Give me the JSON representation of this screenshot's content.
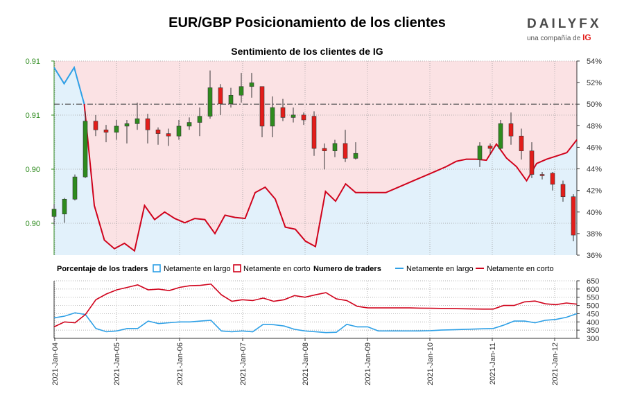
{
  "title": "EUR/GBP Posicionamiento de los clientes",
  "subtitle": "Sentimiento de los clientes de IG",
  "logo": {
    "brand": "DAILYFX",
    "tagline": "una compañía de",
    "ig": "IG"
  },
  "colors": {
    "long": "#2ea0e6",
    "short": "#d0021b",
    "long_fill": "#e2f1fb",
    "short_fill": "#fbe2e4",
    "candle_up": "#2e8b1e",
    "candle_down": "#e31d1a",
    "left_axis": "#2e8b1e"
  },
  "chart_data": [
    {
      "type": "candlestick+line",
      "name": "price_sentiment",
      "left_ticks": [
        "0.91",
        "0.91",
        "0.90",
        "0.90"
      ],
      "right_ticks": [
        "54%",
        "52%",
        "50%",
        "48%",
        "46%",
        "44%",
        "42%",
        "40%",
        "38%",
        "36%"
      ],
      "right_ylim": [
        36,
        54
      ],
      "reference_line": 50,
      "x_ticks": [
        "2021-Jan-04",
        "2021-Jan-05",
        "2021-Jan-06",
        "2021-Jan-07",
        "2021-Jan-08",
        "2021-Jan-09",
        "2021-Jan-10",
        "2021-Jan-11",
        "2021-Jan-12"
      ],
      "long_pct": [
        53.4,
        51.9,
        53.4,
        50.0,
        40.6,
        37.4,
        36.6,
        37.1,
        36.4,
        40.6,
        39.3,
        40.0,
        39.4,
        39.0,
        39.4,
        39.3,
        38.0,
        39.7,
        39.5,
        39.4,
        41.8,
        42.3,
        41.2,
        38.6,
        38.4,
        37.3,
        36.8,
        41.9,
        41.0,
        42.6,
        41.8,
        41.8,
        41.8,
        41.8,
        42.2,
        42.6,
        43.0,
        43.4,
        43.8,
        44.2,
        44.7,
        44.9,
        44.9,
        44.8,
        46.3,
        45.0,
        44.2,
        42.9,
        44.5,
        44.9,
        45.2,
        45.5,
        46.7
      ],
      "candles": [
        [
          0.899,
          0.8996,
          0.8983,
          0.9
        ],
        [
          0.8992,
          0.9004,
          0.8985,
          0.9005
        ],
        [
          0.9004,
          0.9022,
          0.9003,
          0.9024
        ],
        [
          0.9022,
          0.9067,
          0.9021,
          0.9075
        ],
        [
          0.9067,
          0.906,
          0.9055,
          0.9072
        ],
        [
          0.906,
          0.9058,
          0.905,
          0.9064
        ],
        [
          0.9058,
          0.9063,
          0.9052,
          0.9068
        ],
        [
          0.9063,
          0.9065,
          0.9049,
          0.9068
        ],
        [
          0.9065,
          0.9069,
          0.906,
          0.9082
        ],
        [
          0.9069,
          0.906,
          0.9049,
          0.9073
        ],
        [
          0.906,
          0.9057,
          0.9048,
          0.9062
        ],
        [
          0.9057,
          0.9055,
          0.9047,
          0.9061
        ],
        [
          0.9055,
          0.9063,
          0.9052,
          0.9068
        ],
        [
          0.9063,
          0.9066,
          0.906,
          0.907
        ],
        [
          0.9066,
          0.9071,
          0.9055,
          0.9078
        ],
        [
          0.9071,
          0.9094,
          0.9069,
          0.9108
        ],
        [
          0.9094,
          0.9081,
          0.9072,
          0.9097
        ],
        [
          0.9081,
          0.9088,
          0.9078,
          0.9094
        ],
        [
          0.9088,
          0.9095,
          0.9082,
          0.9106
        ],
        [
          0.9095,
          0.9098,
          0.9086,
          0.9106
        ],
        [
          0.9095,
          0.9063,
          0.9054,
          0.9095
        ],
        [
          0.9063,
          0.9078,
          0.9054,
          0.9087
        ],
        [
          0.9078,
          0.907,
          0.9067,
          0.9085
        ],
        [
          0.907,
          0.9072,
          0.9066,
          0.9078
        ],
        [
          0.9072,
          0.9068,
          0.9064,
          0.9074
        ],
        [
          0.9071,
          0.9045,
          0.9039,
          0.9075
        ],
        [
          0.9045,
          0.9043,
          0.9028,
          0.9049
        ],
        [
          0.9043,
          0.9049,
          0.9038,
          0.9052
        ],
        [
          0.9049,
          0.9037,
          0.9034,
          0.906
        ],
        [
          0.9037,
          0.9041,
          0.9036,
          0.905
        ],
        [
          0.9036,
          0.9047,
          0.903,
          0.905
        ],
        [
          0.9047,
          0.9045,
          0.904,
          0.9049
        ],
        [
          0.9045,
          0.9065,
          0.9044,
          0.9068
        ],
        [
          0.9065,
          0.9055,
          0.9048,
          0.9074
        ],
        [
          0.9055,
          0.9043,
          0.9036,
          0.9061
        ],
        [
          0.9043,
          0.9024,
          0.9021,
          0.905
        ],
        [
          0.9024,
          0.9023,
          0.902,
          0.9026
        ],
        [
          0.9025,
          0.9016,
          0.9011,
          0.9026
        ],
        [
          0.9016,
          0.9006,
          0.9002,
          0.9019
        ],
        [
          0.9006,
          0.8975,
          0.897,
          0.9008
        ]
      ]
    },
    {
      "type": "line",
      "name": "trader_counts",
      "right_ticks": [
        650,
        600,
        550,
        500,
        450,
        400,
        350,
        300
      ],
      "ylim": [
        300,
        650
      ],
      "series": [
        {
          "name": "Netamente en largo",
          "values": [
            425,
            435,
            455,
            445,
            360,
            340,
            345,
            360,
            360,
            405,
            390,
            395,
            400,
            400,
            405,
            410,
            345,
            340,
            345,
            340,
            385,
            383,
            375,
            355,
            345,
            340,
            335,
            337,
            385,
            370,
            370,
            345,
            345,
            345,
            345,
            345,
            347,
            350,
            352,
            354,
            356,
            358,
            360,
            380,
            405,
            405,
            395,
            410,
            415,
            428,
            450
          ]
        },
        {
          "name": "Netamente en corto",
          "values": [
            370,
            400,
            395,
            445,
            535,
            570,
            595,
            610,
            625,
            595,
            600,
            590,
            610,
            620,
            622,
            630,
            565,
            525,
            535,
            530,
            545,
            525,
            535,
            560,
            550,
            565,
            578,
            540,
            530,
            495,
            485,
            485,
            485,
            485,
            485,
            484,
            483,
            482,
            481,
            480,
            479,
            478,
            478,
            500,
            500,
            522,
            527,
            510,
            505,
            515,
            508
          ]
        }
      ]
    }
  ],
  "legend": {
    "pct_label": "Porcentaje de los traders",
    "long_label": "Netamente en largo",
    "short_label": "Netamente en corto",
    "count_label": "Numero de traders"
  }
}
